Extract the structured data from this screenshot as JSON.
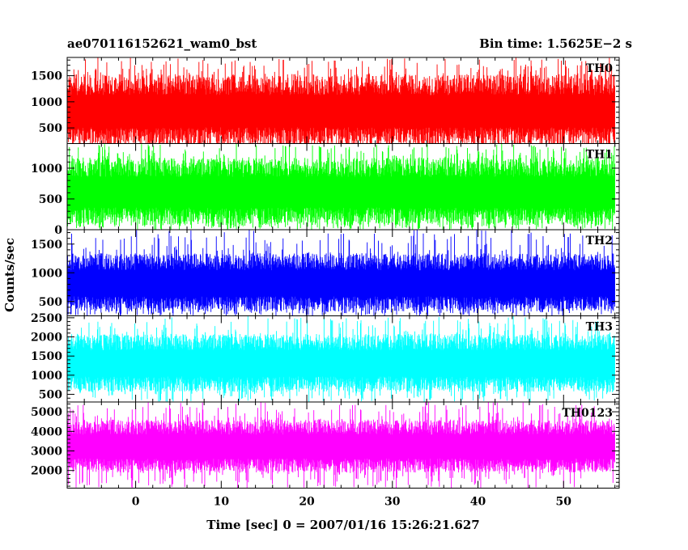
{
  "header": {
    "left_title": "ae070116152621_wam0_bst",
    "right_title": "Bin time: 1.5625E−2 s"
  },
  "chart_data": {
    "type": "line",
    "title": "ae070116152621_wam0_bst",
    "subtitle": "Bin time: 1.5625E−2 s",
    "xlabel": "Time [sec] 0 = 2007/01/16 15:26:21.627",
    "ylabel": "Counts/sec",
    "xlim": [
      -8,
      56.5
    ],
    "x_ticks": [
      0,
      10,
      20,
      30,
      40,
      50
    ],
    "x_tick_labels": [
      "0",
      "10",
      "20",
      "30",
      "40",
      "50"
    ],
    "x_data_range": [
      -8,
      56
    ],
    "grid": false,
    "legend": "none",
    "panels": [
      {
        "name": "TH0",
        "color": "#ff0000",
        "ylim": [
          200,
          1850
        ],
        "y_ticks": [
          500,
          1000,
          1500
        ],
        "y_tick_labels": [
          "500",
          "1000",
          "1500"
        ],
        "band": [
          160,
          1530
        ],
        "mean": 800,
        "peak": 1850
      },
      {
        "name": "TH1",
        "color": "#00ff00",
        "ylim": [
          0,
          1400
        ],
        "y_ticks": [
          0,
          500,
          1000
        ],
        "y_tick_labels": [
          "0",
          "500",
          "1000"
        ],
        "band": [
          70,
          1170
        ],
        "mean": 600,
        "peak": 1400
      },
      {
        "name": "TH2",
        "color": "#0000ff",
        "ylim": [
          250,
          1750
        ],
        "y_ticks": [
          500,
          1000,
          1500
        ],
        "y_tick_labels": [
          "500",
          "1000",
          "1500"
        ],
        "band": [
          330,
          1340
        ],
        "mean": 800,
        "peak": 1750
      },
      {
        "name": "TH3",
        "color": "#00ffff",
        "ylim": [
          300,
          2550
        ],
        "y_ticks": [
          500,
          1000,
          1500,
          2000,
          2500
        ],
        "y_tick_labels": [
          "500",
          "1000",
          "1500",
          "2000",
          "2500"
        ],
        "band": [
          560,
          2080
        ],
        "mean": 1300,
        "peak": 2550
      },
      {
        "name": "TH0123",
        "color": "#ff00ff",
        "ylim": [
          1100,
          5500
        ],
        "y_ticks": [
          2000,
          3000,
          4000,
          5000
        ],
        "y_tick_labels": [
          "2000",
          "3000",
          "4000",
          "5000"
        ],
        "band": [
          1900,
          4600
        ],
        "mean": 3200,
        "peak": 5500
      }
    ]
  }
}
